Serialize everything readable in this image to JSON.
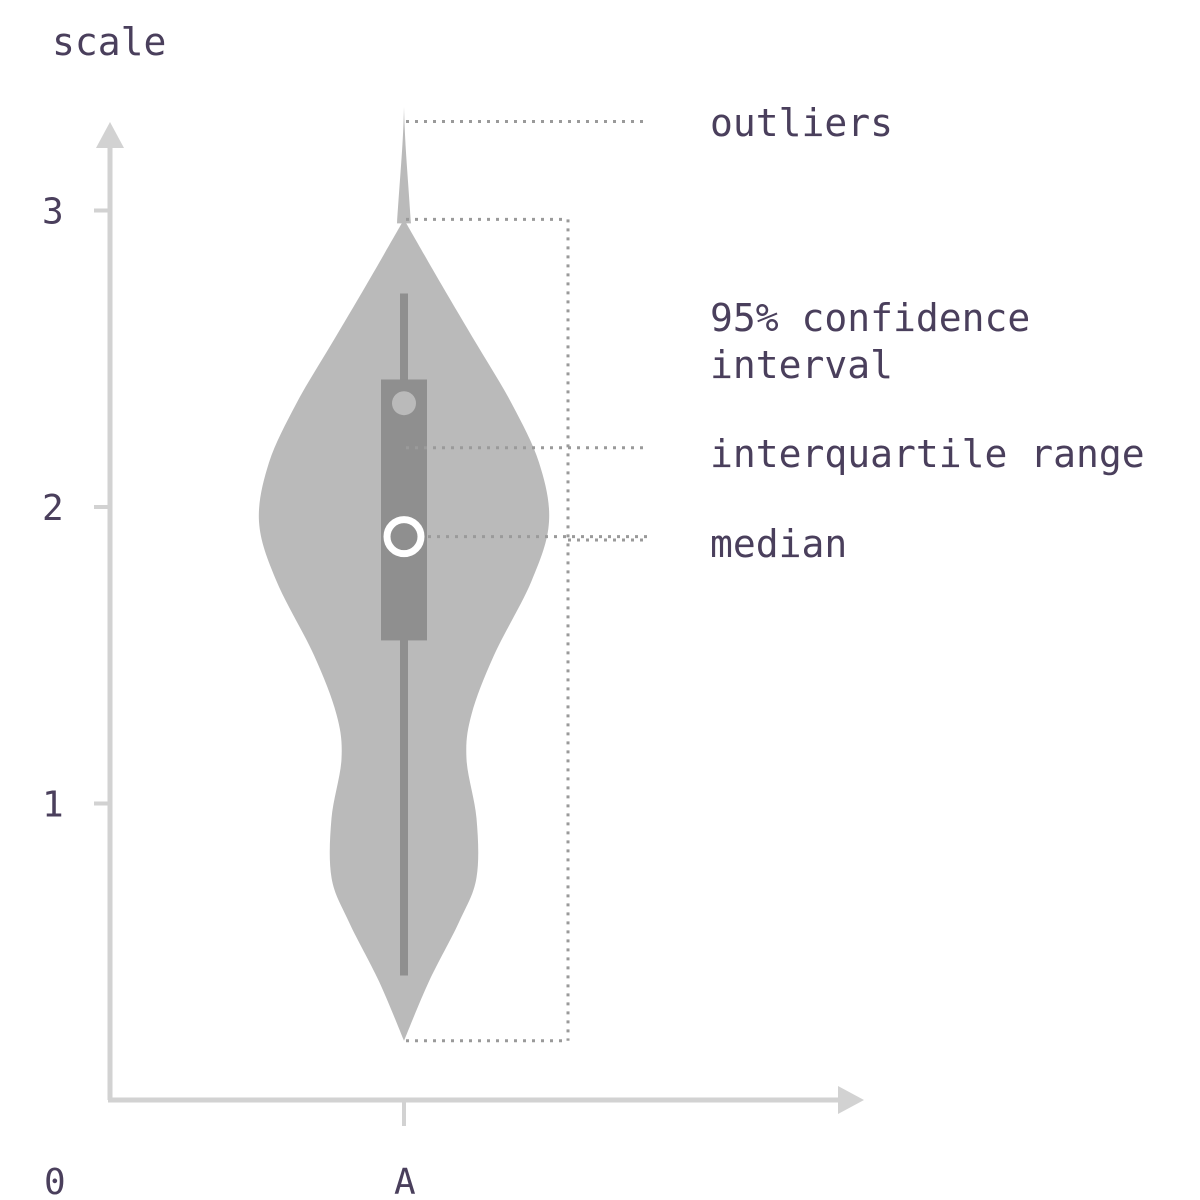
{
  "chart_data": {
    "type": "violin",
    "ylabel": "scale",
    "origin_label": "0",
    "y_ticks": [
      "1",
      "2",
      "3"
    ],
    "ylim": [
      0,
      3.5
    ],
    "categories": [
      "A"
    ],
    "distribution": {
      "min": 0.2,
      "q1": 1.55,
      "median": 1.9,
      "q3": 2.43,
      "whisker_low": 0.42,
      "whisker_high": 2.72,
      "mean": 2.35,
      "ci_low": 0.2,
      "ci_high": 2.97,
      "outlier_max": 3.35
    },
    "density_profile": [
      [
        0.2,
        0.0
      ],
      [
        0.4,
        0.1
      ],
      [
        0.6,
        0.22
      ],
      [
        0.75,
        0.29
      ],
      [
        0.95,
        0.29
      ],
      [
        1.15,
        0.25
      ],
      [
        1.3,
        0.27
      ],
      [
        1.5,
        0.36
      ],
      [
        1.75,
        0.51
      ],
      [
        1.95,
        0.58
      ],
      [
        2.15,
        0.54
      ],
      [
        2.35,
        0.43
      ],
      [
        2.55,
        0.29
      ],
      [
        2.75,
        0.15
      ],
      [
        2.97,
        0.0
      ]
    ],
    "annotations": {
      "outliers": "outliers",
      "ci_line1": "95% confidence",
      "ci_line2": "interval",
      "iqr": "interquartile range",
      "median": "median"
    },
    "colors": {
      "axis": "#d2d2d2",
      "violin": "#bababa",
      "box": "#8f8f8f",
      "median": "#ffffff",
      "dotted": "#9a9a9a",
      "text": "#4a3f5c"
    }
  }
}
